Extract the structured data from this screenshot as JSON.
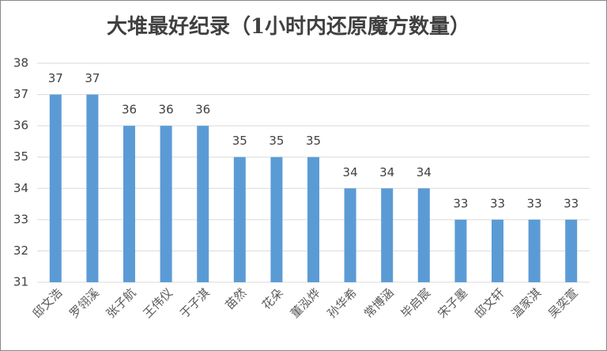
{
  "chart_data": {
    "type": "bar",
    "title": "大堆最好纪录（1小时内还原魔方数量）",
    "categories": [
      "邸文浩",
      "罗翎溪",
      "张子航",
      "王伟仪",
      "于子淇",
      "苗然",
      "花朵",
      "董泓烨",
      "孙华希",
      "常博涵",
      "毕启宸",
      "宋子墨",
      "邸文轩",
      "温家淇",
      "吴奕萱"
    ],
    "values": [
      37,
      37,
      36,
      36,
      36,
      35,
      35,
      35,
      34,
      34,
      34,
      33,
      33,
      33,
      33
    ],
    "color": "#5b9bd5",
    "ylim": [
      31,
      38
    ],
    "yticks": [
      31,
      32,
      33,
      34,
      35,
      36,
      37,
      38
    ],
    "grid": true
  }
}
